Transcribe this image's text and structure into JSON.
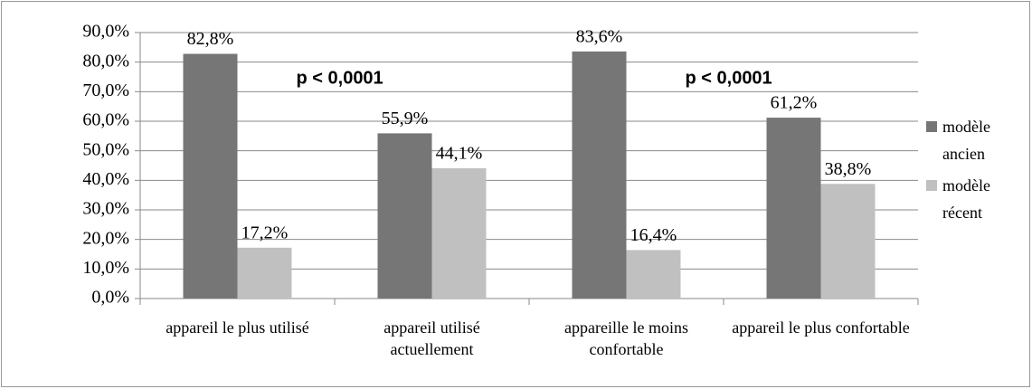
{
  "chart_data": {
    "type": "bar",
    "categories": [
      "appareil le plus utilisé",
      "appareil utilisé actuellement",
      "appareille le moins confortable",
      "appareil le plus confortable"
    ],
    "series": [
      {
        "name": "modèle ancien",
        "color": "#767676",
        "values": [
          82.8,
          55.9,
          83.6,
          61.2
        ],
        "value_labels": [
          "82,8%",
          "55,9%",
          "83,6%",
          "61,2%"
        ]
      },
      {
        "name": "modèle récent",
        "color": "#c0c0c0",
        "values": [
          17.2,
          44.1,
          16.4,
          38.8
        ],
        "value_labels": [
          "17,2%",
          "44,1%",
          "16,4%",
          "38,8%"
        ]
      }
    ],
    "annotations": [
      "p < 0,0001",
      "p < 0,0001"
    ],
    "ylim": [
      0,
      90
    ],
    "yticks": [
      {
        "value": 0,
        "label": "0,0%"
      },
      {
        "value": 10,
        "label": "10,0%"
      },
      {
        "value": 20,
        "label": "20,0%"
      },
      {
        "value": 30,
        "label": "30,0%"
      },
      {
        "value": 40,
        "label": "40,0%"
      },
      {
        "value": 50,
        "label": "50,0%"
      },
      {
        "value": 60,
        "label": "60,0%"
      },
      {
        "value": 70,
        "label": "70,0%"
      },
      {
        "value": 80,
        "label": "80,0%"
      },
      {
        "value": 90,
        "label": "90,0%"
      }
    ],
    "grid": true,
    "legend": "right"
  }
}
